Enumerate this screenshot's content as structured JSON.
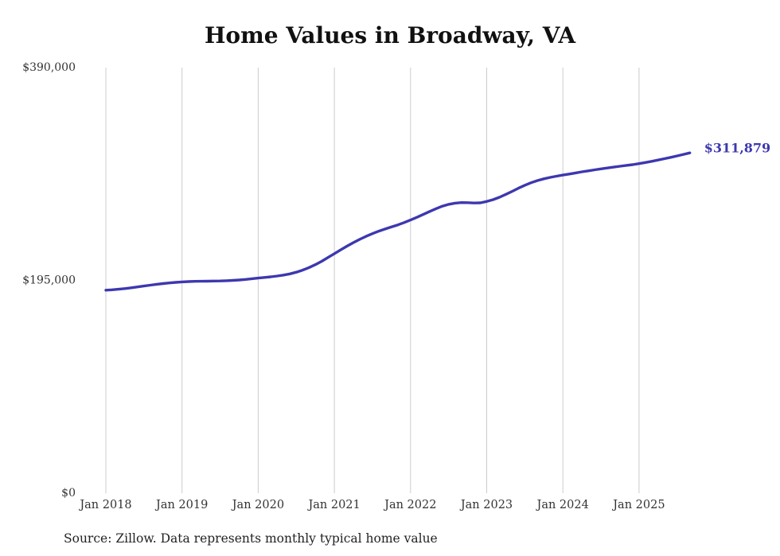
{
  "page": {
    "source": "Source: Zillow. Data represents monthly typical home value"
  },
  "chart_data": {
    "type": "line",
    "title": "Home Values in Broadway, VA",
    "series_name": "Monthly typical home value",
    "frequency": "monthly",
    "start_month": "2018-01",
    "end_month": "2025-09",
    "values": [
      186000,
      186400,
      186900,
      187500,
      188200,
      189000,
      189800,
      190600,
      191400,
      192100,
      192700,
      193200,
      193600,
      193900,
      194100,
      194200,
      194300,
      194400,
      194500,
      194700,
      195000,
      195400,
      195900,
      196500,
      197100,
      197700,
      198300,
      199000,
      199900,
      201000,
      202500,
      204400,
      206700,
      209400,
      212500,
      216000,
      219500,
      223000,
      226400,
      229600,
      232600,
      235400,
      237900,
      240100,
      242100,
      244000,
      245900,
      248000,
      250300,
      252800,
      255400,
      258100,
      260700,
      263000,
      264700,
      265800,
      266300,
      266200,
      265900,
      266100,
      267300,
      269000,
      271200,
      273800,
      276600,
      279500,
      282200,
      284500,
      286500,
      288100,
      289400,
      290500,
      291500,
      292500,
      293500,
      294500,
      295400,
      296300,
      297200,
      298000,
      298800,
      299600,
      300400,
      301100,
      302000,
      303000,
      304100,
      305300,
      306500,
      307800,
      309100,
      310500,
      311879
    ],
    "latest_value": 311879,
    "end_label": "$311,879",
    "xticks": [
      "Jan 2018",
      "Jan 2019",
      "Jan 2020",
      "Jan 2021",
      "Jan 2022",
      "Jan 2023",
      "Jan 2024",
      "Jan 2025"
    ],
    "yticks": [
      {
        "value": 0,
        "label": "$0"
      },
      {
        "value": 195000,
        "label": "$195,000"
      },
      {
        "value": 390000,
        "label": "$390,000"
      }
    ],
    "ylim": [
      0,
      390000
    ],
    "grid": "vertical-only",
    "legend": "none",
    "line_color": "#3d38af",
    "grid_color": "#cccccc",
    "text_color": "#333333",
    "title_color": "#111111"
  }
}
